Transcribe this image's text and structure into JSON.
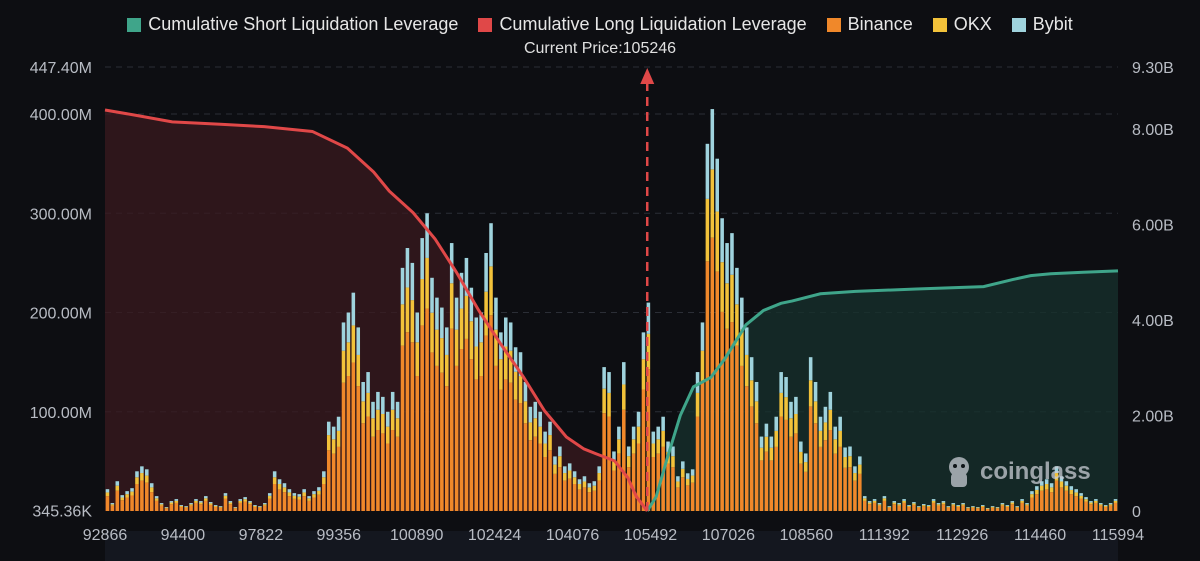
{
  "chart_data": {
    "type": "bar",
    "legend": [
      {
        "label": "Cumulative Short Liquidation Leverage",
        "color": "#3fa58a"
      },
      {
        "label": "Cumulative Long Liquidation Leverage",
        "color": "#e04848"
      },
      {
        "label": "Binance",
        "color": "#f0882a"
      },
      {
        "label": "OKX",
        "color": "#f2c23a"
      },
      {
        "label": "Bybit",
        "color": "#9fd3dd"
      }
    ],
    "current_price_label": "Current Price:105246",
    "current_price": 105246,
    "xlim": [
      92866,
      115994
    ],
    "x_ticks": [
      "92866",
      "94400",
      "97822",
      "99356",
      "100890",
      "102424",
      "104076",
      "105492",
      "107026",
      "108560",
      "111392",
      "112926",
      "114460",
      "115994"
    ],
    "y_left_ticks": [
      "345.36K",
      "100.00M",
      "200.00M",
      "300.00M",
      "400.00M",
      "447.40M"
    ],
    "y_left_tick_values": [
      0.345,
      100,
      200,
      300,
      400,
      447.4
    ],
    "y_left_lim": [
      0,
      447.4
    ],
    "y_left_unit": "M",
    "y_right_ticks": [
      "0",
      "2.00B",
      "4.00B",
      "6.00B",
      "8.00B",
      "9.30B"
    ],
    "y_right_tick_values": [
      0,
      2,
      4,
      6,
      8,
      9.3
    ],
    "y_right_lim": [
      0,
      9.3
    ],
    "y_right_unit": "B",
    "bar_totals": [
      22,
      8,
      30,
      16,
      20,
      23,
      40,
      45,
      42,
      28,
      15,
      8,
      4,
      10,
      12,
      6,
      5,
      8,
      12,
      10,
      15,
      9,
      6,
      5,
      18,
      10,
      4,
      12,
      14,
      10,
      6,
      5,
      8,
      18,
      40,
      32,
      28,
      22,
      18,
      17,
      22,
      15,
      20,
      24,
      40,
      90,
      85,
      95,
      190,
      200,
      220,
      185,
      130,
      140,
      110,
      120,
      115,
      100,
      120,
      110,
      245,
      265,
      250,
      200,
      275,
      300,
      235,
      215,
      205,
      185,
      270,
      215,
      240,
      255,
      225,
      195,
      200,
      260,
      290,
      215,
      180,
      195,
      190,
      165,
      160,
      130,
      105,
      110,
      100,
      80,
      90,
      55,
      65,
      45,
      48,
      40,
      32,
      35,
      28,
      30,
      45,
      145,
      140,
      60,
      85,
      150,
      65,
      85,
      100,
      180,
      210,
      80,
      85,
      95,
      70,
      65,
      35,
      50,
      38,
      42,
      140,
      190,
      370,
      405,
      355,
      295,
      270,
      280,
      245,
      215,
      185,
      155,
      130,
      75,
      88,
      75,
      95,
      140,
      135,
      110,
      115,
      70,
      58,
      155,
      130,
      95,
      105,
      120,
      85,
      95,
      64,
      65,
      45,
      55,
      15,
      10,
      12,
      8,
      15,
      5,
      10,
      8,
      12,
      6,
      9,
      5,
      7,
      6,
      12,
      8,
      10,
      5,
      8,
      6,
      8,
      4,
      5,
      4,
      6,
      3,
      5,
      4,
      8,
      6,
      10,
      5,
      12,
      8,
      20,
      25,
      30,
      32,
      28,
      45,
      35,
      30,
      25,
      22,
      18,
      14,
      10,
      12,
      8,
      6,
      8,
      12
    ],
    "bar_binance_frac": 0.68,
    "bar_okx_frac": 0.17,
    "bar_bybit_frac": 0.15,
    "long_cumulative": [
      [
        92866,
        8.4
      ],
      [
        93500,
        8.3
      ],
      [
        94400,
        8.15
      ],
      [
        95500,
        8.1
      ],
      [
        96500,
        8.05
      ],
      [
        97600,
        7.95
      ],
      [
        98400,
        7.6
      ],
      [
        99000,
        7.1
      ],
      [
        99356,
        6.7
      ],
      [
        99900,
        6.25
      ],
      [
        100400,
        5.7
      ],
      [
        100890,
        5.0
      ],
      [
        101400,
        4.2
      ],
      [
        101900,
        3.5
      ],
      [
        102424,
        2.8
      ],
      [
        102900,
        2.1
      ],
      [
        103400,
        1.55
      ],
      [
        103800,
        1.3
      ],
      [
        104076,
        1.2
      ],
      [
        104500,
        1.05
      ],
      [
        104800,
        0.7
      ],
      [
        105000,
        0.3
      ],
      [
        105246,
        0.0
      ]
    ],
    "short_cumulative": [
      [
        105246,
        0.0
      ],
      [
        105450,
        0.3
      ],
      [
        105700,
        1.1
      ],
      [
        106000,
        2.0
      ],
      [
        106300,
        2.6
      ],
      [
        106700,
        2.8
      ],
      [
        107026,
        3.2
      ],
      [
        107500,
        3.9
      ],
      [
        107900,
        4.2
      ],
      [
        108300,
        4.35
      ],
      [
        108560,
        4.4
      ],
      [
        109200,
        4.55
      ],
      [
        110000,
        4.6
      ],
      [
        111392,
        4.65
      ],
      [
        112926,
        4.7
      ],
      [
        113600,
        4.85
      ],
      [
        114000,
        4.93
      ],
      [
        114460,
        4.97
      ],
      [
        115200,
        5.0
      ],
      [
        115994,
        5.03
      ]
    ]
  },
  "watermark": "coinglass"
}
